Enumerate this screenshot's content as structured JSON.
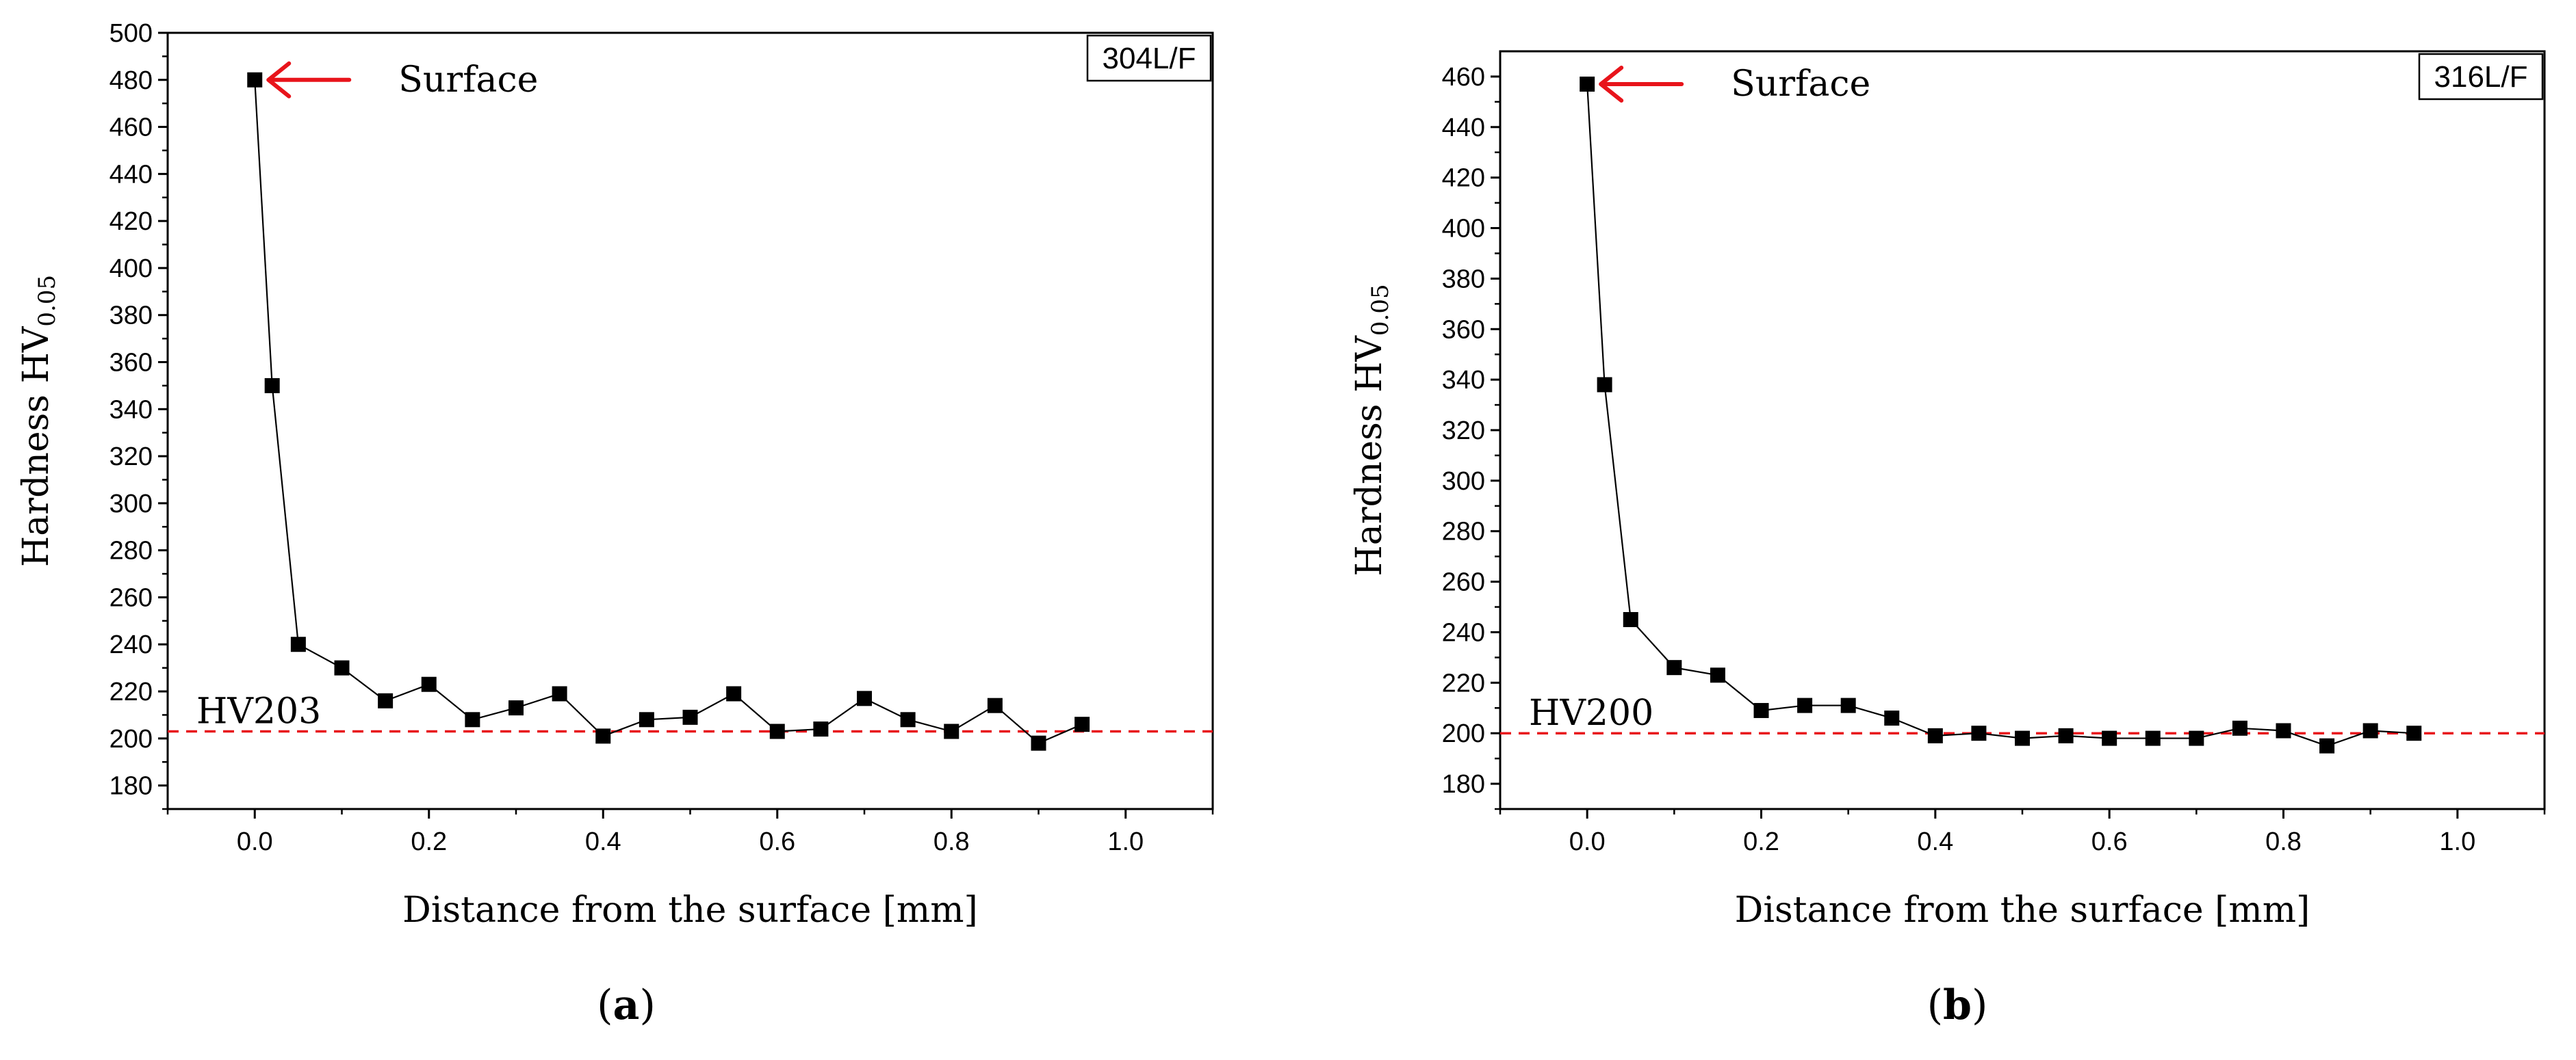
{
  "chart_data": [
    {
      "type": "line",
      "panel": "a",
      "panel_open": "(",
      "panel_close": ")",
      "tag": "304L/F",
      "xlabel": "Distance from the surface [mm]",
      "ylabel_main": "Hardness HV",
      "ylabel_sub": "0.05",
      "xlim": [
        -0.1,
        1.1
      ],
      "ylim": [
        170,
        500
      ],
      "xticks": [
        0.0,
        0.2,
        0.4,
        0.6,
        0.8,
        1.0
      ],
      "xtick_labels": [
        "0.0",
        "0.2",
        "0.4",
        "0.6",
        "0.8",
        "1.0"
      ],
      "yticks": [
        180,
        200,
        220,
        240,
        260,
        280,
        300,
        320,
        340,
        360,
        380,
        400,
        420,
        440,
        460,
        480,
        500
      ],
      "ytick_labels": [
        "180",
        "200",
        "220",
        "240",
        "260",
        "280",
        "300",
        "320",
        "340",
        "360",
        "380",
        "400",
        "420",
        "440",
        "460",
        "480",
        "500"
      ],
      "reference_line": {
        "value": 203,
        "label": "HV203",
        "color": "#e8141b"
      },
      "annotation": {
        "text": "Surface",
        "arrow_color": "#e8141b"
      },
      "series": [
        {
          "name": "304L/F",
          "color": "#000000",
          "x": [
            0.0,
            0.02,
            0.05,
            0.1,
            0.15,
            0.2,
            0.25,
            0.3,
            0.35,
            0.4,
            0.45,
            0.5,
            0.55,
            0.6,
            0.65,
            0.7,
            0.75,
            0.8,
            0.85,
            0.9,
            0.95
          ],
          "y": [
            480,
            350,
            240,
            230,
            216,
            223,
            208,
            213,
            219,
            201,
            208,
            209,
            219,
            203,
            204,
            217,
            208,
            203,
            214,
            198,
            206
          ]
        }
      ]
    },
    {
      "type": "line",
      "panel": "b",
      "panel_open": "(",
      "panel_close": ")",
      "tag": "316L/F",
      "xlabel": "Distance from the surface [mm]",
      "ylabel_main": "Hardness HV",
      "ylabel_sub": "0.05",
      "xlim": [
        -0.1,
        1.1
      ],
      "ylim": [
        170,
        470
      ],
      "xticks": [
        0.0,
        0.2,
        0.4,
        0.6,
        0.8,
        1.0
      ],
      "xtick_labels": [
        "0.0",
        "0.2",
        "0.4",
        "0.6",
        "0.8",
        "1.0"
      ],
      "yticks": [
        180,
        200,
        220,
        240,
        260,
        280,
        300,
        320,
        340,
        360,
        380,
        400,
        420,
        440,
        460
      ],
      "ytick_labels": [
        "180",
        "200",
        "220",
        "240",
        "260",
        "280",
        "300",
        "320",
        "340",
        "360",
        "380",
        "400",
        "420",
        "440",
        "460"
      ],
      "reference_line": {
        "value": 200,
        "label": "HV200",
        "color": "#e8141b"
      },
      "annotation": {
        "text": "Surface",
        "arrow_color": "#e8141b"
      },
      "series": [
        {
          "name": "316L/F",
          "color": "#000000",
          "x": [
            0.0,
            0.02,
            0.05,
            0.1,
            0.15,
            0.2,
            0.25,
            0.3,
            0.35,
            0.4,
            0.45,
            0.5,
            0.55,
            0.6,
            0.65,
            0.7,
            0.75,
            0.8,
            0.85,
            0.9,
            0.95
          ],
          "y": [
            457,
            338,
            245,
            226,
            223,
            209,
            211,
            211,
            206,
            199,
            200,
            198,
            199,
            198,
            198,
            198,
            202,
            201,
            195,
            201,
            200
          ]
        }
      ]
    }
  ]
}
